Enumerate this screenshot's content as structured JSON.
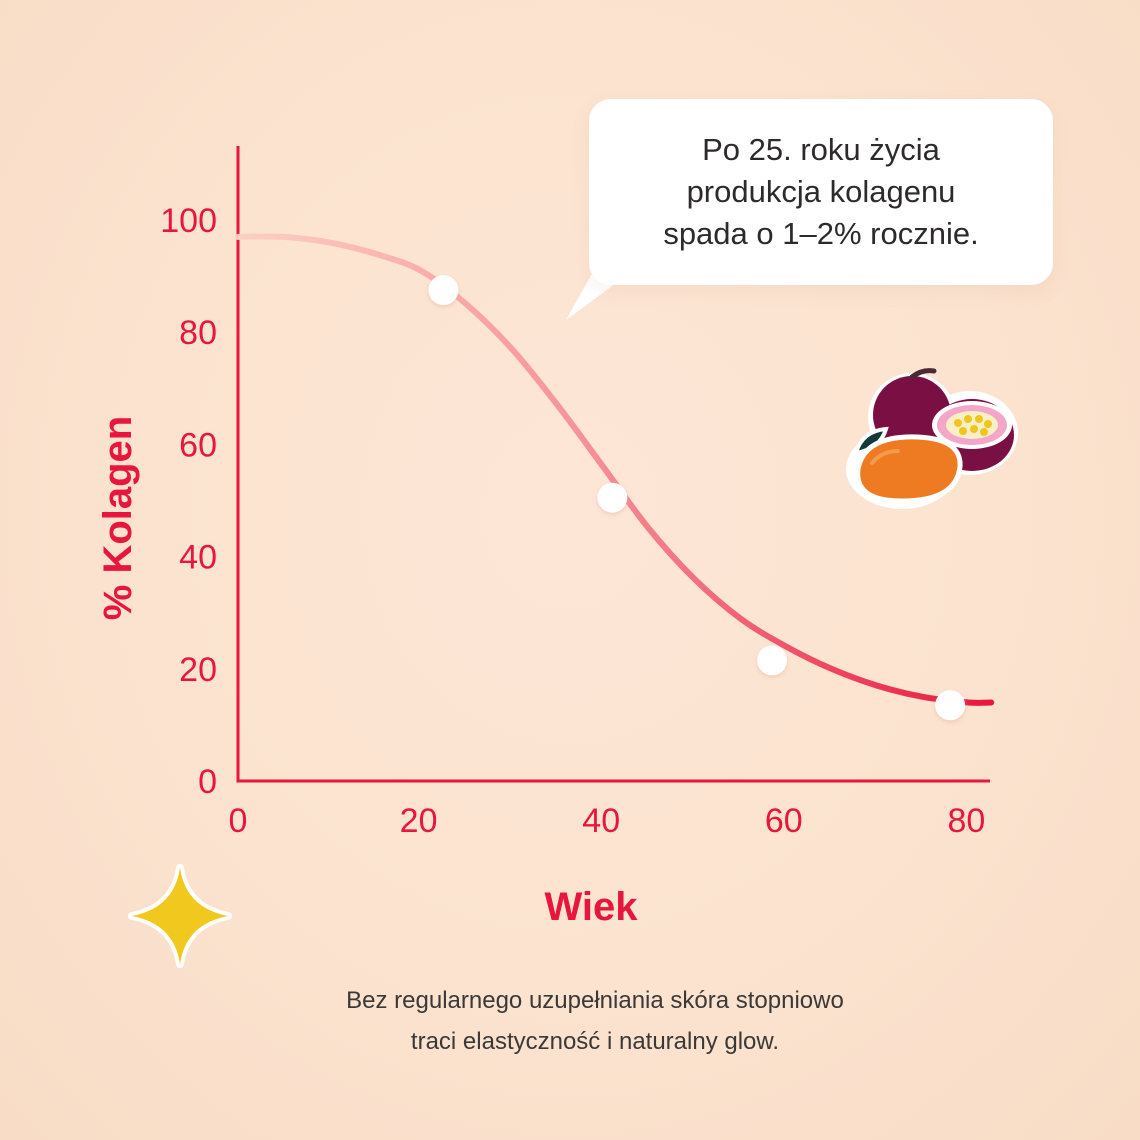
{
  "chart_data": {
    "type": "line",
    "xlabel": "Wiek",
    "ylabel": "% Kolagen",
    "xlim": [
      0,
      85
    ],
    "ylim": [
      0,
      115
    ],
    "x_ticks": [
      0,
      20,
      40,
      60,
      80
    ],
    "y_ticks": [
      0,
      20,
      40,
      60,
      80,
      100
    ],
    "grid": false,
    "curve": {
      "x": [
        0,
        5,
        10,
        15,
        20,
        25,
        30,
        35,
        40,
        45,
        50,
        55,
        60,
        65,
        70,
        75,
        80,
        82.5
      ],
      "y": [
        97,
        97,
        96,
        94,
        91,
        85,
        77,
        67,
        56,
        45,
        36,
        29,
        24,
        20,
        17,
        15,
        14,
        14
      ]
    },
    "series": [
      {
        "name": "",
        "x": [
          22.5,
          41,
          58.5,
          78
        ],
        "y": [
          87.5,
          50.5,
          21.5,
          13.5
        ]
      }
    ],
    "colors": {
      "axis": "#e8163c",
      "line_start": "#fbc4b8",
      "line_end": "#e8163c",
      "marker": "#ffffff"
    }
  },
  "annotation": {
    "line1": "Po 25. roku życia",
    "line2": "produkcja kolagenu",
    "line3": "spada o 1–2% rocznie."
  },
  "caption": {
    "line1": "Bez regularnego uzupełniania skóra stopniowo",
    "line2": "traci elastyczność i naturalny glow."
  },
  "decorations": {
    "sparkle_icon": "sparkle-icon",
    "fruit_icon": "passion-fruit-mango-icon"
  }
}
